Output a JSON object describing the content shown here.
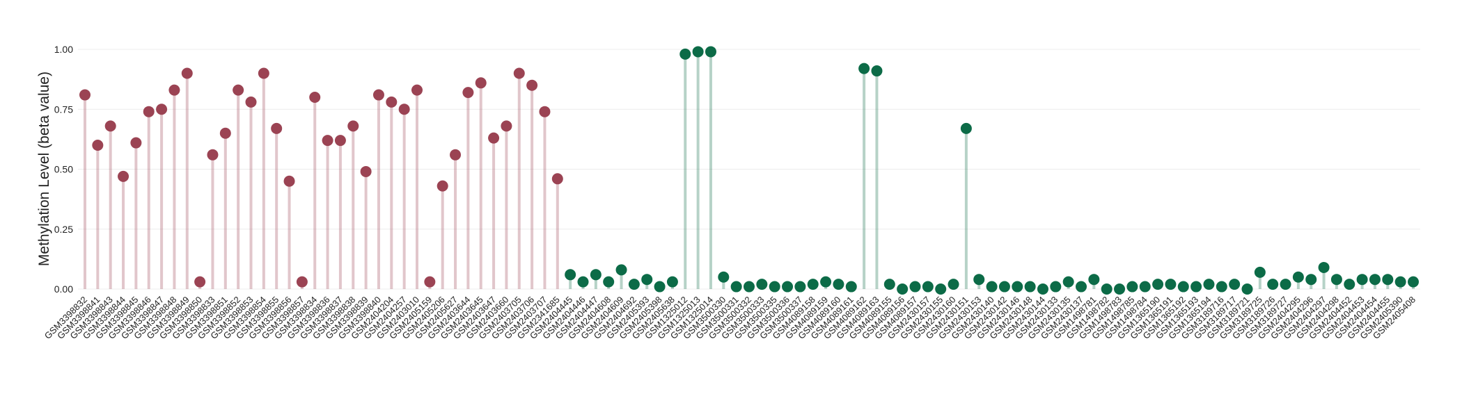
{
  "chart_data": {
    "type": "lollipop",
    "ylabel": "Methylation Level (beta value)",
    "categories": [
      "GSM3398832",
      "GSM3398841",
      "GSM3398843",
      "GSM3398844",
      "GSM3398845",
      "GSM3398846",
      "GSM3398847",
      "GSM3398848",
      "GSM3398849",
      "GSM3398850",
      "GSM3398833",
      "GSM3398851",
      "GSM3398852",
      "GSM3398853",
      "GSM3398854",
      "GSM3398855",
      "GSM3398856",
      "GSM3398857",
      "GSM3398834",
      "GSM3398836",
      "GSM3398837",
      "GSM3398838",
      "GSM3398839",
      "GSM3398840",
      "GSM2404204",
      "GSM2404257",
      "GSM2403010",
      "GSM2405159",
      "GSM2405206",
      "GSM2405627",
      "GSM2403644",
      "GSM2403645",
      "GSM2403647",
      "GSM2403660",
      "GSM2403705",
      "GSM2403706",
      "GSM2403707",
      "GSM2341685",
      "GSM2404445",
      "GSM2404446",
      "GSM2404447",
      "GSM2404608",
      "GSM2404609",
      "GSM2404692",
      "GSM2405393",
      "GSM2405398",
      "GSM2405638",
      "GSM1325012",
      "GSM1325013",
      "GSM1325014",
      "GSM3500330",
      "GSM3500331",
      "GSM3500332",
      "GSM3500333",
      "GSM3500335",
      "GSM3500336",
      "GSM3500337",
      "GSM4089158",
      "GSM4089159",
      "GSM4089160",
      "GSM4089161",
      "GSM4089162",
      "GSM4089163",
      "GSM4089155",
      "GSM4089156",
      "GSM4089157",
      "GSM2430157",
      "GSM2430155",
      "GSM2430160",
      "GSM2430151",
      "GSM2430153",
      "GSM2430140",
      "GSM2430142",
      "GSM2430146",
      "GSM2430148",
      "GSM2430144",
      "GSM2430133",
      "GSM2430135",
      "GSM2430137",
      "GSM1498781",
      "GSM1498782",
      "GSM1498783",
      "GSM1498785",
      "GSM1498784",
      "GSM1365190",
      "GSM1365191",
      "GSM1365192",
      "GSM1365193",
      "GSM1365194",
      "GSM3189716",
      "GSM3189717",
      "GSM3189721",
      "GSM3189725",
      "GSM3189726",
      "GSM3189727",
      "GSM2404295",
      "GSM2404296",
      "GSM2404297",
      "GSM2404298",
      "GSM2404452",
      "GSM2404453",
      "GSM2404454",
      "GSM2404455",
      "GSM2405390",
      "GSM2405408"
    ],
    "values": [
      0.81,
      0.6,
      0.68,
      0.47,
      0.61,
      0.74,
      0.75,
      0.83,
      0.9,
      0.03,
      0.56,
      0.65,
      0.83,
      0.78,
      0.9,
      0.67,
      0.45,
      0.03,
      0.8,
      0.62,
      0.62,
      0.68,
      0.49,
      0.81,
      0.78,
      0.75,
      0.83,
      0.03,
      0.43,
      0.56,
      0.82,
      0.86,
      0.63,
      0.68,
      0.9,
      0.85,
      0.74,
      0.46,
      0.06,
      0.03,
      0.06,
      0.03,
      0.08,
      0.02,
      0.04,
      0.01,
      0.03,
      0.98,
      0.99,
      0.99,
      0.05,
      0.01,
      0.01,
      0.02,
      0.01,
      0.01,
      0.01,
      0.02,
      0.03,
      0.02,
      0.01,
      0.92,
      0.91,
      0.02,
      0.0,
      0.01,
      0.01,
      0.0,
      0.02,
      0.67,
      0.04,
      0.01,
      0.01,
      0.01,
      0.01,
      0.0,
      0.01,
      0.03,
      0.01,
      0.04,
      0.0,
      0.0,
      0.01,
      0.01,
      0.02,
      0.02,
      0.01,
      0.01,
      0.02,
      0.01,
      0.02,
      0.0,
      0.07,
      0.02,
      0.02,
      0.05,
      0.04,
      0.09,
      0.04,
      0.02,
      0.04,
      0.04,
      0.04,
      0.03,
      0.03
    ],
    "colors": [
      "#9b4353",
      "#9b4353",
      "#9b4353",
      "#9b4353",
      "#9b4353",
      "#9b4353",
      "#9b4353",
      "#9b4353",
      "#9b4353",
      "#9b4353",
      "#9b4353",
      "#9b4353",
      "#9b4353",
      "#9b4353",
      "#9b4353",
      "#9b4353",
      "#9b4353",
      "#9b4353",
      "#9b4353",
      "#9b4353",
      "#9b4353",
      "#9b4353",
      "#9b4353",
      "#9b4353",
      "#9b4353",
      "#9b4353",
      "#9b4353",
      "#9b4353",
      "#9b4353",
      "#9b4353",
      "#9b4353",
      "#9b4353",
      "#9b4353",
      "#9b4353",
      "#9b4353",
      "#9b4353",
      "#9b4353",
      "#9b4353",
      "#0c6b47",
      "#0c6b47",
      "#0c6b47",
      "#0c6b47",
      "#0c6b47",
      "#0c6b47",
      "#0c6b47",
      "#0c6b47",
      "#0c6b47",
      "#0c6b47",
      "#0c6b47",
      "#0c6b47",
      "#0c6b47",
      "#0c6b47",
      "#0c6b47",
      "#0c6b47",
      "#0c6b47",
      "#0c6b47",
      "#0c6b47",
      "#0c6b47",
      "#0c6b47",
      "#0c6b47",
      "#0c6b47",
      "#0c6b47",
      "#0c6b47",
      "#0c6b47",
      "#0c6b47",
      "#0c6b47",
      "#0c6b47",
      "#0c6b47",
      "#0c6b47",
      "#0c6b47",
      "#0c6b47",
      "#0c6b47",
      "#0c6b47",
      "#0c6b47",
      "#0c6b47",
      "#0c6b47",
      "#0c6b47",
      "#0c6b47",
      "#0c6b47",
      "#0c6b47",
      "#0c6b47",
      "#0c6b47",
      "#0c6b47",
      "#0c6b47",
      "#0c6b47",
      "#0c6b47",
      "#0c6b47",
      "#0c6b47",
      "#0c6b47",
      "#0c6b47",
      "#0c6b47",
      "#0c6b47",
      "#0c6b47",
      "#0c6b47",
      "#0c6b47",
      "#0c6b47",
      "#0c6b47",
      "#0c6b47",
      "#0c6b47",
      "#0c6b47",
      "#0c6b47",
      "#0c6b47",
      "#0c6b47",
      "#0c6b47",
      "#0c6b47"
    ],
    "ylim": [
      0,
      1
    ],
    "yticks": [
      {
        "value": 0,
        "label": "0.00"
      },
      {
        "value": 0.25,
        "label": "0.25"
      },
      {
        "value": 0.5,
        "label": "0.50"
      },
      {
        "value": 0.75,
        "label": "0.75"
      },
      {
        "value": 1,
        "label": "1.00"
      }
    ],
    "grid": true
  }
}
